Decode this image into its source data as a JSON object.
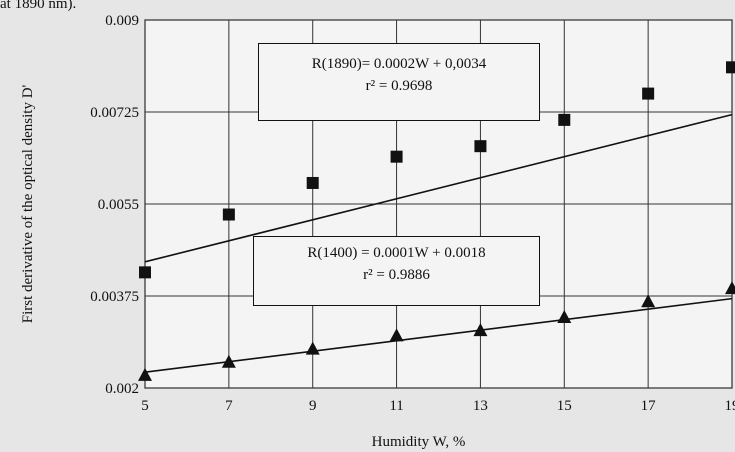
{
  "caption": "at 1890 nm).",
  "chart_data": {
    "type": "scatter",
    "xlabel": "Humidity W, %",
    "ylabel": "First derivative of the optical density D'",
    "x": [
      5,
      7,
      9,
      11,
      13,
      15,
      17,
      19
    ],
    "xlim": [
      5,
      19
    ],
    "ylim": [
      0.002,
      0.009
    ],
    "x_ticks": [
      "5",
      "7",
      "9",
      "11",
      "13",
      "15",
      "17",
      "19"
    ],
    "y_ticks": [
      "0.002",
      "0.00375",
      "0.0055",
      "0.00725",
      "0.009"
    ],
    "grid": true,
    "series": [
      {
        "marker": "square",
        "values": [
          0.0042,
          0.0053,
          0.0059,
          0.0064,
          0.0066,
          0.0071,
          0.0076,
          0.0081
        ],
        "trendline": {
          "slope": 0.0002,
          "intercept": 0.0034
        },
        "equation": "R(1890)= 0.0002W + 0,0034",
        "r2": "r² = 0.9698"
      },
      {
        "marker": "triangle",
        "values": [
          0.00225,
          0.0025,
          0.00275,
          0.003,
          0.0031,
          0.00335,
          0.00365,
          0.0039
        ],
        "trendline": {
          "slope": 0.0001,
          "intercept": 0.0018
        },
        "equation": "R(1400) = 0.0001W + 0.0018",
        "r2": "r² = 0.9886"
      }
    ],
    "marker_color": "#111111",
    "line_color": "#111111",
    "plot_background": "#f4f4f4"
  }
}
